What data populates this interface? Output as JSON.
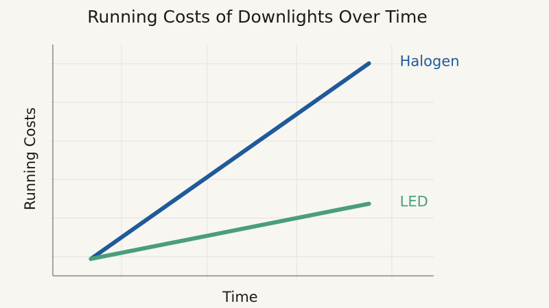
{
  "chart_data": {
    "type": "line",
    "title": "Running Costs of Downlights Over Time",
    "x_label": "Time",
    "y_label": "Running Costs",
    "xlim": [
      0,
      10
    ],
    "xticks": [
      1.8,
      4.05,
      6.4,
      8.9
    ],
    "ylim": [
      0,
      6
    ],
    "yticks": [
      0.5,
      1.5,
      2.5,
      3.5,
      4.5,
      5.5
    ],
    "grid": true,
    "series": [
      {
        "name": "Halogen",
        "color": "#1f5a9a",
        "x": [
          1,
          8.3
        ],
        "values": [
          0.44,
          5.51
        ]
      },
      {
        "name": "LED",
        "color": "#4a9e7a",
        "x": [
          1,
          8.3
        ],
        "values": [
          0.44,
          1.87
        ]
      }
    ]
  }
}
